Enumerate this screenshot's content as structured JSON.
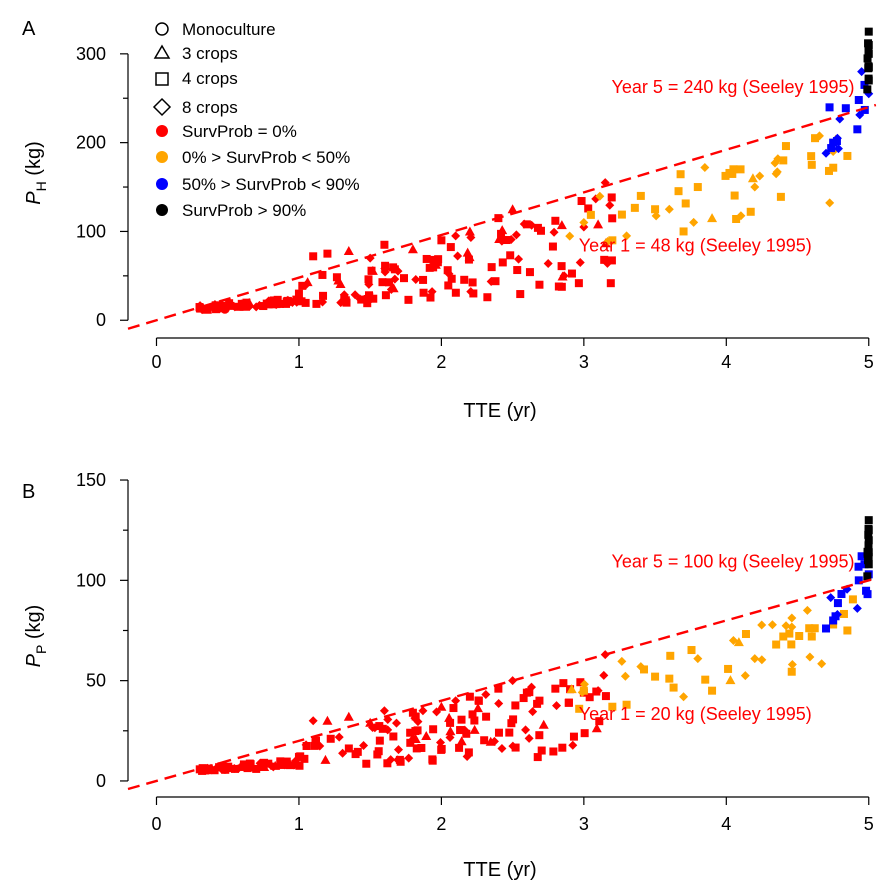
{
  "legend": {
    "shapes": [
      {
        "label": "Monoculture",
        "shape": "circle"
      },
      {
        "label": "3 crops",
        "shape": "triangle"
      },
      {
        "label": "4 crops",
        "shape": "square"
      },
      {
        "label": "8 crops",
        "shape": "diamond"
      }
    ],
    "colors": [
      {
        "label": "SurvProb = 0%",
        "color": "#ff0000"
      },
      {
        "label": "0% > SurvProb < 50%",
        "color": "#ffa500"
      },
      {
        "label": "50% > SurvProb < 90%",
        "color": "#0000ff"
      },
      {
        "label": "SurvProb > 90%",
        "color": "#000000"
      }
    ]
  },
  "chart_data": [
    {
      "panel": "A",
      "type": "scatter",
      "xlabel": "TTE (yr)",
      "ylabel_main": "P",
      "ylabel_sub": "H",
      "ylabel_unit": " (kg)",
      "xlim": [
        -0.2,
        5.1
      ],
      "ylim": [
        -20,
        355
      ],
      "xticks": [
        0,
        1,
        2,
        3,
        4,
        5
      ],
      "yticks": [
        0,
        100,
        200,
        300
      ],
      "reference_line": {
        "slope": 48,
        "intercept": 0,
        "color": "#ff0000",
        "style": "dashed"
      },
      "annotations": [
        {
          "text": "Year 5 = 240 kg (Seeley 1995)",
          "x": 4.9,
          "y": 240,
          "color": "#ff0000"
        },
        {
          "text": "Year 1 = 48 kg (Seeley 1995)",
          "x": 4.6,
          "y": 48,
          "color": "#ff0000"
        }
      ],
      "groups": [
        {
          "name": "SurvProb = 0%",
          "color": "#ff0000",
          "x_range": [
            0.3,
            3.2
          ],
          "points": [
            [
              0.32,
              12
            ],
            [
              0.48,
              13
            ],
            [
              0.55,
              15
            ],
            [
              0.62,
              17
            ],
            [
              0.7,
              15
            ],
            [
              0.75,
              16
            ],
            [
              0.82,
              18
            ],
            [
              0.9,
              20
            ],
            [
              1.0,
              30
            ],
            [
              1.05,
              40
            ],
            [
              1.1,
              72
            ],
            [
              1.2,
              75
            ],
            [
              1.35,
              78
            ],
            [
              1.5,
              70
            ],
            [
              1.6,
              85
            ],
            [
              1.8,
              80
            ],
            [
              2.0,
              90
            ],
            [
              2.1,
              95
            ],
            [
              2.2,
              100
            ],
            [
              2.4,
              115
            ],
            [
              2.5,
              125
            ],
            [
              2.6,
              108
            ],
            [
              2.8,
              112
            ],
            [
              3.0,
              105
            ],
            [
              3.1,
              108
            ],
            [
              3.15,
              155
            ]
          ]
        },
        {
          "name": "0% > SurvProb < 50%",
          "color": "#ffa500",
          "x_range": [
            2.9,
            4.9
          ],
          "points": [
            [
              3.0,
              110
            ],
            [
              3.2,
              90
            ],
            [
              3.3,
              95
            ],
            [
              3.4,
              140
            ],
            [
              3.5,
              125
            ],
            [
              3.6,
              125
            ],
            [
              3.7,
              100
            ],
            [
              3.8,
              150
            ],
            [
              3.9,
              115
            ],
            [
              4.05,
              170
            ],
            [
              4.2,
              150
            ],
            [
              4.35,
              165
            ],
            [
              4.4,
              180
            ],
            [
              4.6,
              175
            ],
            [
              4.75,
              190
            ],
            [
              4.85,
              185
            ]
          ]
        },
        {
          "name": "50% > SurvProb < 90%",
          "color": "#0000ff",
          "x_range": [
            4.7,
            5.0
          ],
          "points": [
            [
              4.7,
              188
            ],
            [
              4.75,
              200
            ],
            [
              4.78,
              205
            ],
            [
              4.92,
              215
            ],
            [
              4.93,
              248
            ],
            [
              4.95,
              280
            ],
            [
              4.97,
              265
            ],
            [
              5.0,
              255
            ]
          ]
        },
        {
          "name": "SurvProb > 90%",
          "color": "#000000",
          "x_range": [
            4.99,
            5.0
          ],
          "points": [
            [
              4.99,
              260
            ],
            [
              5.0,
              270
            ],
            [
              5.0,
              285
            ],
            [
              5.0,
              300
            ],
            [
              5.0,
              310
            ],
            [
              5.0,
              325
            ]
          ]
        }
      ]
    },
    {
      "panel": "B",
      "type": "scatter",
      "xlabel": "TTE (yr)",
      "ylabel_main": "P",
      "ylabel_sub": "P",
      "ylabel_unit": " (kg)",
      "xlim": [
        -0.2,
        5.1
      ],
      "ylim": [
        -8,
        155
      ],
      "xticks": [
        0,
        1,
        2,
        3,
        4,
        5
      ],
      "yticks": [
        0,
        50,
        100,
        150
      ],
      "reference_line": {
        "slope": 20,
        "intercept": 0,
        "color": "#ff0000",
        "style": "dashed"
      },
      "annotations": [
        {
          "text": "Year 5 = 100 kg (Seeley 1995)",
          "x": 4.9,
          "y": 100,
          "color": "#ff0000"
        },
        {
          "text": "Year 1 = 20 kg (Seeley 1995)",
          "x": 4.6,
          "y": 20,
          "color": "#ff0000"
        }
      ],
      "groups": [
        {
          "name": "SurvProb = 0%",
          "color": "#ff0000",
          "x_range": [
            0.3,
            3.2
          ],
          "points": [
            [
              0.32,
              5
            ],
            [
              0.48,
              6
            ],
            [
              0.55,
              6
            ],
            [
              0.62,
              7
            ],
            [
              0.7,
              6
            ],
            [
              0.75,
              7
            ],
            [
              0.82,
              7
            ],
            [
              0.9,
              8
            ],
            [
              1.0,
              12
            ],
            [
              1.05,
              18
            ],
            [
              1.1,
              30
            ],
            [
              1.2,
              30
            ],
            [
              1.35,
              32
            ],
            [
              1.5,
              29
            ],
            [
              1.6,
              35
            ],
            [
              1.8,
              34
            ],
            [
              2.0,
              37
            ],
            [
              2.1,
              40
            ],
            [
              2.2,
              42
            ],
            [
              2.4,
              46
            ],
            [
              2.5,
              50
            ],
            [
              2.6,
              44
            ],
            [
              2.8,
              46
            ],
            [
              3.0,
              44
            ],
            [
              3.1,
              45
            ],
            [
              3.15,
              63
            ]
          ]
        },
        {
          "name": "0% > SurvProb < 50%",
          "color": "#ffa500",
          "x_range": [
            2.9,
            4.9
          ],
          "points": [
            [
              3.0,
              45
            ],
            [
              3.2,
              37
            ],
            [
              3.3,
              38
            ],
            [
              3.4,
              57
            ],
            [
              3.5,
              52
            ],
            [
              3.6,
              51
            ],
            [
              3.7,
              42
            ],
            [
              3.8,
              61
            ],
            [
              3.9,
              45
            ],
            [
              4.05,
              70
            ],
            [
              4.2,
              61
            ],
            [
              4.35,
              68
            ],
            [
              4.4,
              72
            ],
            [
              4.6,
              72
            ],
            [
              4.75,
              78
            ],
            [
              4.85,
              75
            ]
          ]
        },
        {
          "name": "50% > SurvProb < 90%",
          "color": "#0000ff",
          "x_range": [
            4.7,
            5.0
          ],
          "points": [
            [
              4.7,
              76
            ],
            [
              4.75,
              80
            ],
            [
              4.78,
              83
            ],
            [
              4.92,
              86
            ],
            [
              4.93,
              100
            ],
            [
              4.95,
              112
            ],
            [
              4.97,
              108
            ],
            [
              5.0,
              103
            ]
          ]
        },
        {
          "name": "SurvProb > 90%",
          "color": "#000000",
          "x_range": [
            4.99,
            5.0
          ],
          "points": [
            [
              4.99,
              102
            ],
            [
              5.0,
              108
            ],
            [
              5.0,
              114
            ],
            [
              5.0,
              120
            ],
            [
              5.0,
              125
            ],
            [
              5.0,
              130
            ]
          ]
        }
      ]
    }
  ]
}
